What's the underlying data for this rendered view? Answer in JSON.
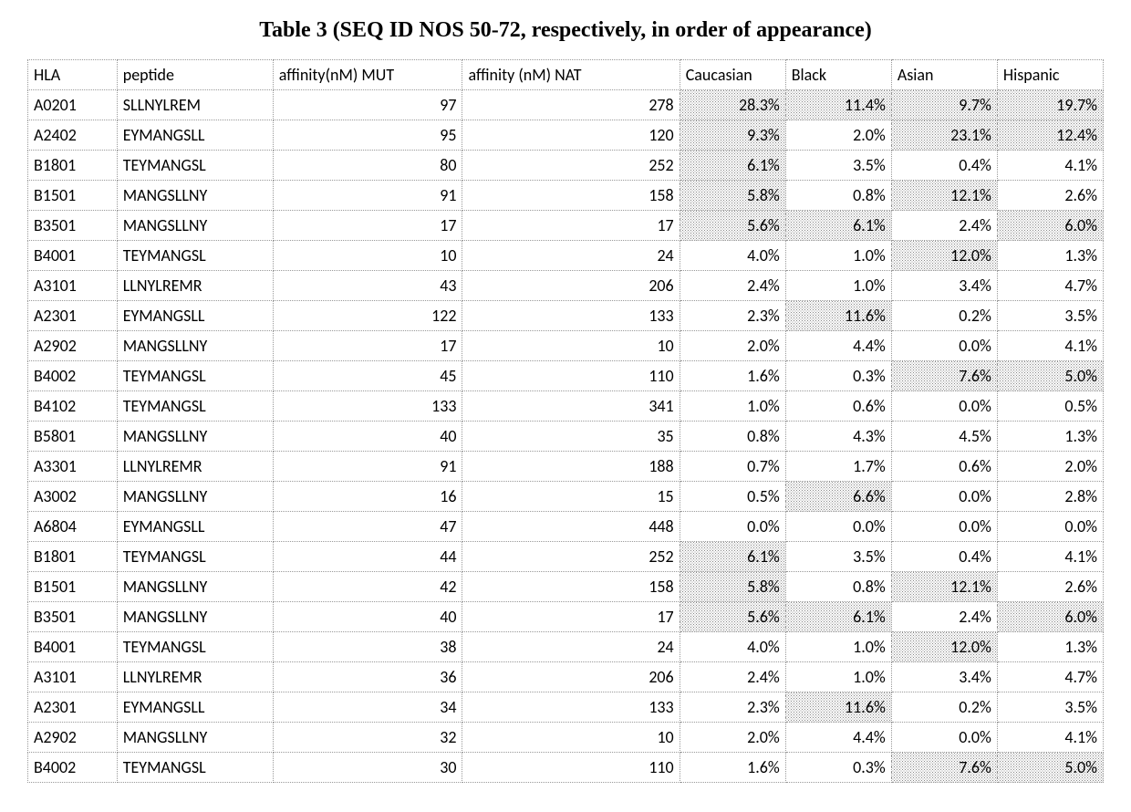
{
  "title": "Table 3 (SEQ ID NOS 50-72, respectively, in order of appearance)",
  "columns": [
    "HLA",
    "peptide",
    "affinity(nM) MUT",
    "affinity (nM) NAT",
    "Caucasian",
    "Black",
    "Asian",
    "Hispanic"
  ],
  "styling": {
    "background_color": "#ffffff",
    "title_font": "Times New Roman",
    "title_fontsize": 24,
    "body_font": "Calibri",
    "body_fontsize": 18,
    "border_color": "#999999",
    "border_style": "dotted",
    "shade_pattern_color": "#888888",
    "column_align": [
      "left",
      "left",
      "right",
      "right",
      "right",
      "right",
      "right",
      "right"
    ]
  },
  "rows": [
    {
      "hla": "A0201",
      "peptide": "SLLNYLREM",
      "mut": "97",
      "nat": "278",
      "cauc": "28.3%",
      "black": "11.4%",
      "asian": "9.7%",
      "hisp": "19.7%",
      "shade": {
        "cauc": true,
        "black": true,
        "asian": true,
        "hisp": true
      }
    },
    {
      "hla": "A2402",
      "peptide": "EYMANGSLL",
      "mut": "95",
      "nat": "120",
      "cauc": "9.3%",
      "black": "2.0%",
      "asian": "23.1%",
      "hisp": "12.4%",
      "shade": {
        "cauc": true,
        "black": false,
        "asian": true,
        "hisp": true
      }
    },
    {
      "hla": "B1801",
      "peptide": "TEYMANGSL",
      "mut": "80",
      "nat": "252",
      "cauc": "6.1%",
      "black": "3.5%",
      "asian": "0.4%",
      "hisp": "4.1%",
      "shade": {
        "cauc": true,
        "black": false,
        "asian": false,
        "hisp": false
      }
    },
    {
      "hla": "B1501",
      "peptide": "MANGSLLNY",
      "mut": "91",
      "nat": "158",
      "cauc": "5.8%",
      "black": "0.8%",
      "asian": "12.1%",
      "hisp": "2.6%",
      "shade": {
        "cauc": true,
        "black": false,
        "asian": true,
        "hisp": false
      }
    },
    {
      "hla": "B3501",
      "peptide": "MANGSLLNY",
      "mut": "17",
      "nat": "17",
      "cauc": "5.6%",
      "black": "6.1%",
      "asian": "2.4%",
      "hisp": "6.0%",
      "shade": {
        "cauc": true,
        "black": true,
        "asian": false,
        "hisp": true
      }
    },
    {
      "hla": "B4001",
      "peptide": "TEYMANGSL",
      "mut": "10",
      "nat": "24",
      "cauc": "4.0%",
      "black": "1.0%",
      "asian": "12.0%",
      "hisp": "1.3%",
      "shade": {
        "cauc": false,
        "black": false,
        "asian": true,
        "hisp": false
      }
    },
    {
      "hla": "A3101",
      "peptide": "LLNYLREMR",
      "mut": "43",
      "nat": "206",
      "cauc": "2.4%",
      "black": "1.0%",
      "asian": "3.4%",
      "hisp": "4.7%",
      "shade": {
        "cauc": false,
        "black": false,
        "asian": false,
        "hisp": false
      }
    },
    {
      "hla": "A2301",
      "peptide": "EYMANGSLL",
      "mut": "122",
      "nat": "133",
      "cauc": "2.3%",
      "black": "11.6%",
      "asian": "0.2%",
      "hisp": "3.5%",
      "shade": {
        "cauc": false,
        "black": true,
        "asian": false,
        "hisp": false
      }
    },
    {
      "hla": "A2902",
      "peptide": "MANGSLLNY",
      "mut": "17",
      "nat": "10",
      "cauc": "2.0%",
      "black": "4.4%",
      "asian": "0.0%",
      "hisp": "4.1%",
      "shade": {
        "cauc": false,
        "black": false,
        "asian": false,
        "hisp": false
      }
    },
    {
      "hla": "B4002",
      "peptide": "TEYMANGSL",
      "mut": "45",
      "nat": "110",
      "cauc": "1.6%",
      "black": "0.3%",
      "asian": "7.6%",
      "hisp": "5.0%",
      "shade": {
        "cauc": false,
        "black": false,
        "asian": true,
        "hisp": true
      }
    },
    {
      "hla": "B4102",
      "peptide": "TEYMANGSL",
      "mut": "133",
      "nat": "341",
      "cauc": "1.0%",
      "black": "0.6%",
      "asian": "0.0%",
      "hisp": "0.5%",
      "shade": {
        "cauc": false,
        "black": false,
        "asian": false,
        "hisp": false
      }
    },
    {
      "hla": "B5801",
      "peptide": "MANGSLLNY",
      "mut": "40",
      "nat": "35",
      "cauc": "0.8%",
      "black": "4.3%",
      "asian": "4.5%",
      "hisp": "1.3%",
      "shade": {
        "cauc": false,
        "black": false,
        "asian": false,
        "hisp": false
      }
    },
    {
      "hla": "A3301",
      "peptide": "LLNYLREMR",
      "mut": "91",
      "nat": "188",
      "cauc": "0.7%",
      "black": "1.7%",
      "asian": "0.6%",
      "hisp": "2.0%",
      "shade": {
        "cauc": false,
        "black": false,
        "asian": false,
        "hisp": false
      }
    },
    {
      "hla": "A3002",
      "peptide": "MANGSLLNY",
      "mut": "16",
      "nat": "15",
      "cauc": "0.5%",
      "black": "6.6%",
      "asian": "0.0%",
      "hisp": "2.8%",
      "shade": {
        "cauc": false,
        "black": true,
        "asian": false,
        "hisp": false
      }
    },
    {
      "hla": "A6804",
      "peptide": "EYMANGSLL",
      "mut": "47",
      "nat": "448",
      "cauc": "0.0%",
      "black": "0.0%",
      "asian": "0.0%",
      "hisp": "0.0%",
      "shade": {
        "cauc": false,
        "black": false,
        "asian": false,
        "hisp": false
      }
    },
    {
      "hla": "B1801",
      "peptide": "TEYMANGSL",
      "mut": "44",
      "nat": "252",
      "cauc": "6.1%",
      "black": "3.5%",
      "asian": "0.4%",
      "hisp": "4.1%",
      "shade": {
        "cauc": true,
        "black": false,
        "asian": false,
        "hisp": false
      }
    },
    {
      "hla": "B1501",
      "peptide": "MANGSLLNY",
      "mut": "42",
      "nat": "158",
      "cauc": "5.8%",
      "black": "0.8%",
      "asian": "12.1%",
      "hisp": "2.6%",
      "shade": {
        "cauc": true,
        "black": false,
        "asian": true,
        "hisp": false
      }
    },
    {
      "hla": "B3501",
      "peptide": "MANGSLLNY",
      "mut": "40",
      "nat": "17",
      "cauc": "5.6%",
      "black": "6.1%",
      "asian": "2.4%",
      "hisp": "6.0%",
      "shade": {
        "cauc": true,
        "black": true,
        "asian": false,
        "hisp": true
      }
    },
    {
      "hla": "B4001",
      "peptide": "TEYMANGSL",
      "mut": "38",
      "nat": "24",
      "cauc": "4.0%",
      "black": "1.0%",
      "asian": "12.0%",
      "hisp": "1.3%",
      "shade": {
        "cauc": false,
        "black": false,
        "asian": true,
        "hisp": false
      }
    },
    {
      "hla": "A3101",
      "peptide": "LLNYLREMR",
      "mut": "36",
      "nat": "206",
      "cauc": "2.4%",
      "black": "1.0%",
      "asian": "3.4%",
      "hisp": "4.7%",
      "shade": {
        "cauc": false,
        "black": false,
        "asian": false,
        "hisp": false
      }
    },
    {
      "hla": "A2301",
      "peptide": "EYMANGSLL",
      "mut": "34",
      "nat": "133",
      "cauc": "2.3%",
      "black": "11.6%",
      "asian": "0.2%",
      "hisp": "3.5%",
      "shade": {
        "cauc": false,
        "black": true,
        "asian": false,
        "hisp": false
      }
    },
    {
      "hla": "A2902",
      "peptide": "MANGSLLNY",
      "mut": "32",
      "nat": "10",
      "cauc": "2.0%",
      "black": "4.4%",
      "asian": "0.0%",
      "hisp": "4.1%",
      "shade": {
        "cauc": false,
        "black": false,
        "asian": false,
        "hisp": false
      }
    },
    {
      "hla": "B4002",
      "peptide": "TEYMANGSL",
      "mut": "30",
      "nat": "110",
      "cauc": "1.6%",
      "black": "0.3%",
      "asian": "7.6%",
      "hisp": "5.0%",
      "shade": {
        "cauc": false,
        "black": false,
        "asian": true,
        "hisp": true
      }
    }
  ]
}
